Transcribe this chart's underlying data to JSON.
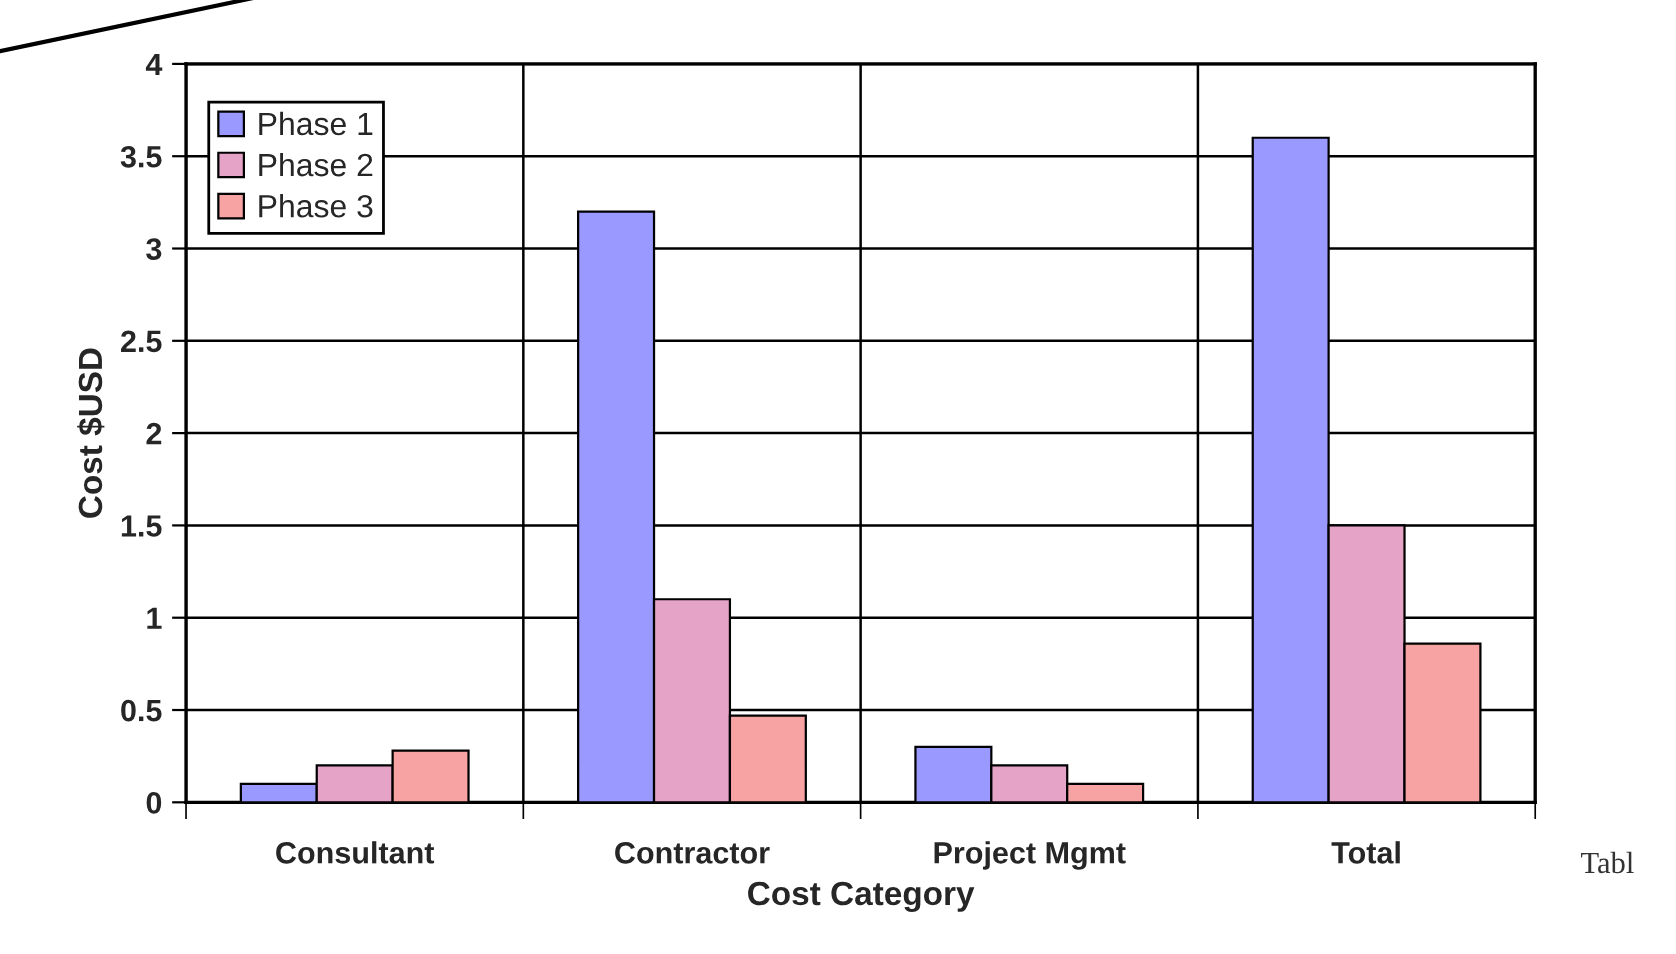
{
  "chart_data": {
    "type": "bar",
    "xlabel": "Cost Category",
    "ylabel": "Cost $USD",
    "categories": [
      "Consultant",
      "Contractor",
      "Project Mgmt",
      "Total"
    ],
    "series": [
      {
        "name": "Phase 1",
        "color": "#9999ff",
        "values": [
          0.1,
          3.2,
          0.3,
          3.6
        ]
      },
      {
        "name": "Phase 2",
        "color": "#e6a3c8",
        "values": [
          0.2,
          1.1,
          0.2,
          1.5
        ]
      },
      {
        "name": "Phase 3",
        "color": "#f7a3a3",
        "values": [
          0.28,
          0.47,
          0.1,
          0.86
        ]
      }
    ],
    "ylim": [
      0,
      4
    ],
    "yticks": [
      0,
      0.5,
      1,
      1.5,
      2,
      2.5,
      3,
      3.5,
      4
    ],
    "grid": true,
    "legend": "top left",
    "annotations": [
      "Tabl"
    ]
  }
}
